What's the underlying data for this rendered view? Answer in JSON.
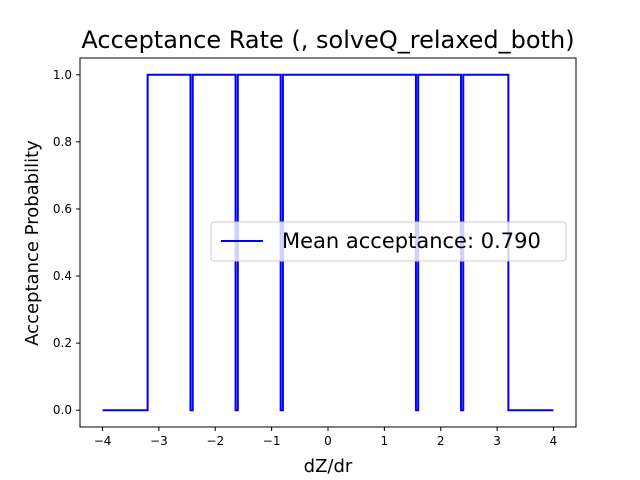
{
  "chart_data": {
    "type": "line",
    "title": "Acceptance Rate (, solveQ_relaxed_both)",
    "xlabel": "dZ/dr",
    "ylabel": "Acceptance Probability",
    "xlim": [
      -4.4,
      4.4
    ],
    "ylim": [
      -0.05,
      1.05
    ],
    "x_ticks": [
      -4,
      -3,
      -2,
      -1,
      0,
      1,
      2,
      3,
      4
    ],
    "y_ticks": [
      0.0,
      0.2,
      0.4,
      0.6,
      0.8,
      1.0
    ],
    "x_tick_labels": [
      "−4",
      "−3",
      "−2",
      "−1",
      "0",
      "1",
      "2",
      "3",
      "4"
    ],
    "y_tick_labels": [
      "0.0",
      "0.2",
      "0.4",
      "0.6",
      "0.8",
      "1.0"
    ],
    "grid": false,
    "legend_position": "center-right",
    "series": [
      {
        "name": "Mean acceptance: 0.790",
        "color": "#0000ff",
        "x": [
          -4.0,
          -3.2,
          -3.2,
          -2.44,
          -2.44,
          -2.4,
          -2.4,
          -1.64,
          -1.64,
          -1.6,
          -1.6,
          -0.84,
          -0.84,
          -0.8,
          -0.8,
          1.56,
          1.56,
          1.6,
          1.6,
          2.36,
          2.36,
          2.4,
          2.4,
          3.2,
          3.2,
          4.0
        ],
        "y": [
          0.0,
          0.0,
          1.0,
          1.0,
          0.0,
          0.0,
          1.0,
          1.0,
          0.0,
          0.0,
          1.0,
          1.0,
          0.0,
          0.0,
          1.0,
          1.0,
          0.0,
          0.0,
          1.0,
          1.0,
          0.0,
          0.0,
          1.0,
          1.0,
          0.0,
          0.0
        ]
      }
    ]
  }
}
